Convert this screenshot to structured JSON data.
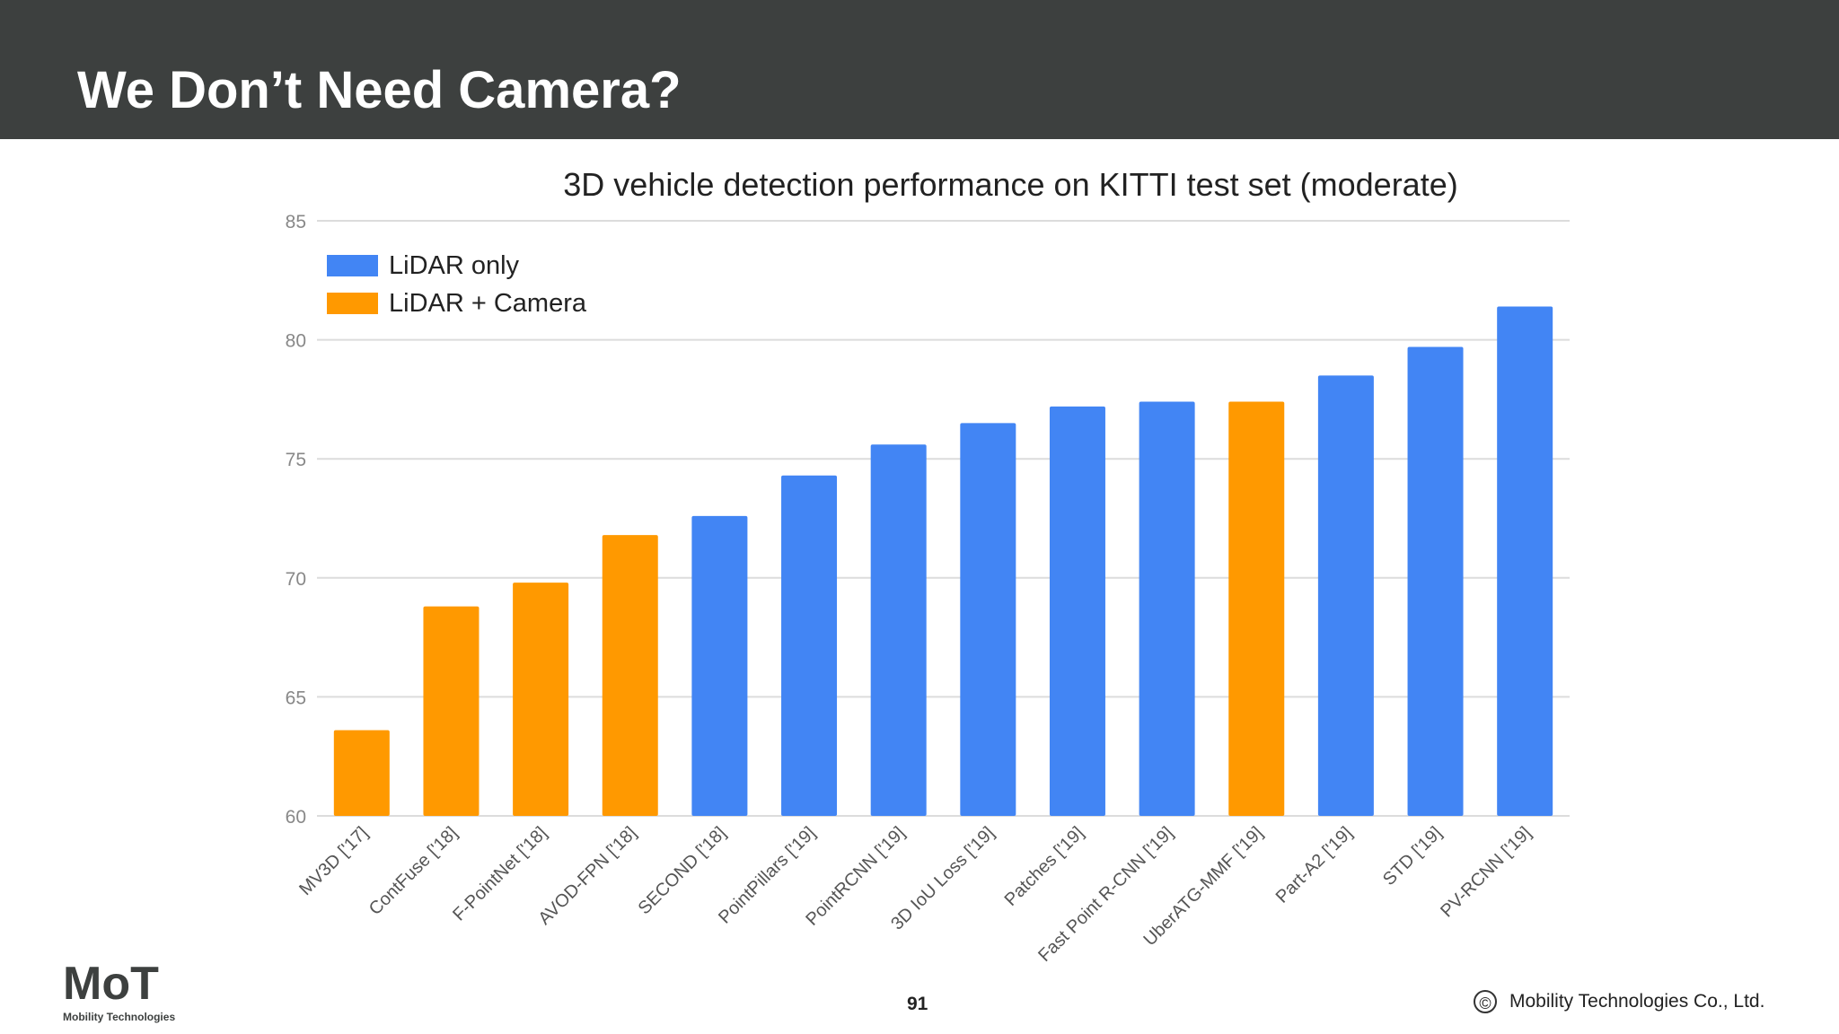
{
  "slide": {
    "title": "We Don’t Need Camera?",
    "page_number": "91",
    "copyright_symbol": "©",
    "copyright_text": "Mobility Technologies Co., Ltd.",
    "logo": {
      "mark": "MoT",
      "caption": "Mobility Technologies"
    }
  },
  "chart_data": {
    "type": "bar",
    "title": "3D vehicle detection performance on KITTI test set (moderate)",
    "xlabel": "",
    "ylabel": "",
    "ylim": [
      60,
      85
    ],
    "yticks": [
      60,
      65,
      70,
      75,
      80,
      85
    ],
    "grid": true,
    "legend_position": "top-left",
    "legend": [
      {
        "name": "LiDAR only",
        "color": "#4285f4"
      },
      {
        "name": "LiDAR + Camera",
        "color": "#ff9900"
      }
    ],
    "categories": [
      "MV3D ['17]",
      "ContFuse ['18]",
      "F-PointNet ['18]",
      "AVOD-FPN ['18]",
      "SECOND ['18]",
      "PointPillars ['19]",
      "PointRCNN ['19]",
      "3D IoU Loss ['19]",
      "Patches ['19]",
      "Fast Point R-CNN ['19]",
      "UberATG-MMF ['19]",
      "Part-A2 ['19]",
      "STD ['19]",
      "PV-RCNN ['19]"
    ],
    "values": [
      63.6,
      68.8,
      69.8,
      71.8,
      72.6,
      74.3,
      75.6,
      76.5,
      77.2,
      77.4,
      77.4,
      78.5,
      79.7,
      81.4
    ],
    "groups": [
      "LiDAR + Camera",
      "LiDAR + Camera",
      "LiDAR + Camera",
      "LiDAR + Camera",
      "LiDAR only",
      "LiDAR only",
      "LiDAR only",
      "LiDAR only",
      "LiDAR only",
      "LiDAR only",
      "LiDAR + Camera",
      "LiDAR only",
      "LiDAR only",
      "LiDAR only"
    ]
  }
}
